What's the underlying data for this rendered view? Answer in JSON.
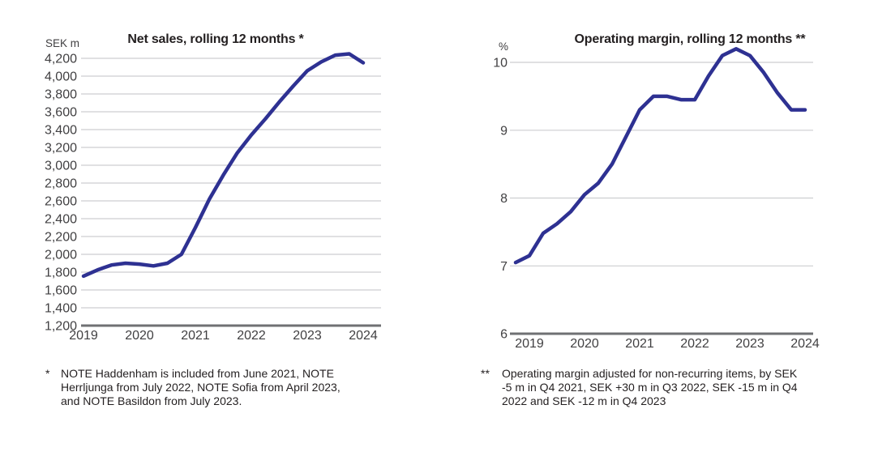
{
  "style": {
    "line_color": "#2e3192",
    "grid_color": "#cdced0",
    "axis_color": "#6f7073",
    "tick_text_color": "#414042",
    "text_color": "#231f20",
    "background": "#ffffff"
  },
  "chart_data": [
    {
      "id": "net-sales",
      "type": "line",
      "title": "Net sales, rolling 12 months *",
      "unit": "SEK m",
      "grid": true,
      "ylim": [
        1200,
        4200
      ],
      "ytick_step": 200,
      "xticks": [
        2019,
        2020,
        2021,
        2022,
        2023,
        2024
      ],
      "x": [
        2019,
        2019.25,
        2019.5,
        2019.75,
        2020,
        2020.25,
        2020.5,
        2020.75,
        2021,
        2021.25,
        2021.5,
        2021.75,
        2022,
        2022.25,
        2022.5,
        2022.75,
        2023,
        2023.25,
        2023.5,
        2023.75,
        2024
      ],
      "values": [
        1755,
        1825,
        1880,
        1900,
        1890,
        1870,
        1900,
        2000,
        2300,
        2620,
        2890,
        3140,
        3340,
        3520,
        3710,
        3890,
        4060,
        4160,
        4235,
        4250,
        4150
      ],
      "footnote": {
        "marker": "*",
        "lines": [
          "NOTE Haddenham is included from June 2021, NOTE",
          "Herrljunga from July 2022, NOTE Sofia from April 2023,",
          "and NOTE Basildon from July 2023."
        ]
      }
    },
    {
      "id": "operating-margin",
      "type": "line",
      "title": "Operating margin, rolling 12 months **",
      "unit": "%",
      "grid": true,
      "ylim": [
        6,
        10
      ],
      "ytick_step": 1,
      "xticks": [
        2019,
        2020,
        2021,
        2022,
        2023,
        2024
      ],
      "x": [
        2018.75,
        2019,
        2019.25,
        2019.5,
        2019.75,
        2020,
        2020.25,
        2020.5,
        2020.75,
        2021,
        2021.25,
        2021.5,
        2021.75,
        2022,
        2022.25,
        2022.5,
        2022.75,
        2023,
        2023.25,
        2023.5,
        2023.75,
        2024
      ],
      "values": [
        7.05,
        7.15,
        7.48,
        7.62,
        7.8,
        8.05,
        8.22,
        8.5,
        8.9,
        9.3,
        9.5,
        9.5,
        9.45,
        9.45,
        9.8,
        10.1,
        10.2,
        10.1,
        9.85,
        9.55,
        9.3,
        9.3
      ],
      "footnote": {
        "marker": "**",
        "lines": [
          "Operating margin adjusted for non-recurring items, by SEK",
          "-5 m in Q4 2021, SEK +30 m in Q3 2022, SEK -15 m in Q4",
          "2022 and SEK -12 m in Q4 2023"
        ]
      }
    }
  ]
}
